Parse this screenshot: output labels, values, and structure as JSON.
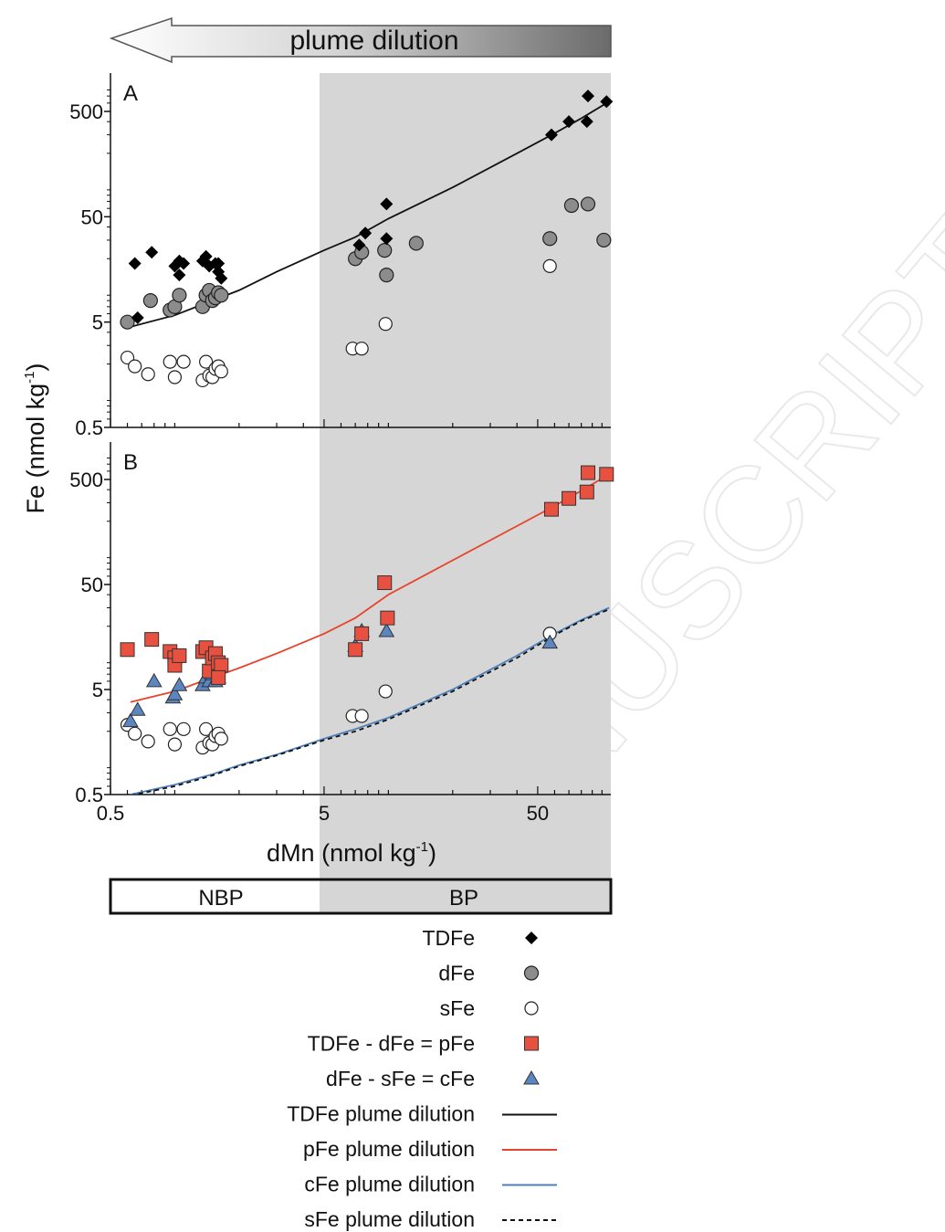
{
  "header": {
    "arrow_label": "plume dilution"
  },
  "watermark": "ANUSCRIPT",
  "panels": {
    "A": {
      "label": "A"
    },
    "B": {
      "label": "B"
    }
  },
  "axes": {
    "ylabel_main": "Fe (nmol kg",
    "ylabel_sup": "-1",
    "ylabel_end": ")",
    "xlabel_main": "dMn (nmol kg",
    "xlabel_sup": "-1",
    "xlabel_end": ")",
    "xlim": [
      0.5,
      110
    ],
    "ylim_A": [
      0.5,
      900
    ],
    "ylim_B": [
      0.5,
      900
    ],
    "x_ticks": [
      {
        "v": 0.5,
        "label": "0.5"
      },
      {
        "v": 5,
        "label": "5"
      },
      {
        "v": 50,
        "label": "50"
      }
    ],
    "y_ticks": [
      {
        "v": 0.5,
        "label": "0.5"
      },
      {
        "v": 5,
        "label": "5"
      },
      {
        "v": 50,
        "label": "50"
      },
      {
        "v": 500,
        "label": "500"
      }
    ],
    "x_scale": "log",
    "y_scale": "log"
  },
  "plume_band": {
    "label_left": "NBP",
    "label_right": "BP",
    "bp_start_dMn": 5.6,
    "fill": "#d6d6d6"
  },
  "colors": {
    "tdfe": "#000000",
    "dfe": "#8c8c8c",
    "sfe": "#ffffff",
    "pfe": "#e8513f",
    "cfe": "#5b86c0",
    "pfe_line": "#e8422a",
    "cfe_line": "#4f7fb8",
    "sfe_line": "#111111"
  },
  "legend": {
    "placement": "bottom",
    "items": [
      {
        "label": "TDFe",
        "marker": "diamond"
      },
      {
        "label": "dFe",
        "marker": "circle-gray"
      },
      {
        "label": "sFe",
        "marker": "circle-white"
      },
      {
        "label": "TDFe - dFe = pFe",
        "marker": "square-red"
      },
      {
        "label": "dFe - sFe = cFe",
        "marker": "triangle-blue"
      },
      {
        "label": "TDFe plume dilution",
        "marker": "line-black"
      },
      {
        "label": "pFe plume dilution",
        "marker": "line-red"
      },
      {
        "label": "cFe plume dilution",
        "marker": "line-blue"
      },
      {
        "label": "sFe plume dilution",
        "marker": "line-dashed"
      }
    ]
  },
  "chart_data": [
    {
      "panel": "A",
      "type": "scatter",
      "series": [
        {
          "name": "TDFe",
          "points": [
            [
              0.65,
              18
            ],
            [
              0.78,
              23
            ],
            [
              0.67,
              5.5
            ],
            [
              1.0,
              17
            ],
            [
              1.05,
              19
            ],
            [
              1.05,
              14
            ],
            [
              1.1,
              18
            ],
            [
              1.35,
              19
            ],
            [
              1.4,
              21
            ],
            [
              1.45,
              17
            ],
            [
              1.55,
              18
            ],
            [
              1.6,
              15
            ],
            [
              1.65,
              13
            ],
            [
              1.6,
              18
            ],
            [
              7.3,
              27
            ],
            [
              7.8,
              35
            ],
            [
              9.8,
              66
            ],
            [
              9.8,
              31
            ],
            [
              58,
              300
            ],
            [
              70,
              400
            ],
            [
              85,
              400
            ],
            [
              86,
              700
            ],
            [
              105,
              620
            ]
          ]
        },
        {
          "name": "dFe",
          "points": [
            [
              0.6,
              5
            ],
            [
              0.77,
              8
            ],
            [
              0.95,
              6.5
            ],
            [
              1.0,
              7
            ],
            [
              1.05,
              9
            ],
            [
              1.35,
              7
            ],
            [
              1.4,
              9
            ],
            [
              1.45,
              10
            ],
            [
              1.5,
              8
            ],
            [
              1.55,
              8.5
            ],
            [
              1.6,
              9.5
            ],
            [
              1.65,
              9
            ],
            [
              7.0,
              20
            ],
            [
              7.5,
              23
            ],
            [
              9.6,
              24
            ],
            [
              9.8,
              14
            ],
            [
              13.5,
              28
            ],
            [
              57,
              31
            ],
            [
              72,
              64
            ],
            [
              86,
              66
            ],
            [
              102,
              30
            ]
          ]
        },
        {
          "name": "sFe",
          "points": [
            [
              0.6,
              2.3
            ],
            [
              0.65,
              1.9
            ],
            [
              0.75,
              1.6
            ],
            [
              0.95,
              2.1
            ],
            [
              1.0,
              1.5
            ],
            [
              1.1,
              2.1
            ],
            [
              1.35,
              1.4
            ],
            [
              1.4,
              2.1
            ],
            [
              1.45,
              1.55
            ],
            [
              1.5,
              1.5
            ],
            [
              1.55,
              1.8
            ],
            [
              1.6,
              1.9
            ],
            [
              1.65,
              1.7
            ],
            [
              6.8,
              2.8
            ],
            [
              7.5,
              2.8
            ],
            [
              9.7,
              4.8
            ],
            [
              57,
              17
            ]
          ]
        }
      ],
      "lines": [
        {
          "name": "TDFe plume dilution",
          "x": [
            0.62,
            1.0,
            1.5,
            2.0,
            3.0,
            5.0,
            7.0,
            10.0,
            20.0,
            40.0,
            60.0,
            80.0,
            108.0
          ],
          "y": [
            4.5,
            5.8,
            8.0,
            10.0,
            15.0,
            24.0,
            32.0,
            48.0,
            95.0,
            200.0,
            310.0,
            430.0,
            620.0
          ]
        }
      ]
    },
    {
      "panel": "B",
      "type": "scatter",
      "series": [
        {
          "name": "TDFe - dFe = pFe",
          "points": [
            [
              0.6,
              12
            ],
            [
              0.78,
              15
            ],
            [
              0.95,
              11.5
            ],
            [
              1.0,
              10
            ],
            [
              1.0,
              8.5
            ],
            [
              1.05,
              10.5
            ],
            [
              1.35,
              11.5
            ],
            [
              1.4,
              12.5
            ],
            [
              1.45,
              7.5
            ],
            [
              1.5,
              10
            ],
            [
              1.55,
              11
            ],
            [
              1.6,
              9
            ],
            [
              1.65,
              8.5
            ],
            [
              1.6,
              6.5
            ],
            [
              7.0,
              12
            ],
            [
              7.5,
              17
            ],
            [
              9.6,
              52
            ],
            [
              9.9,
              24
            ],
            [
              58,
              260
            ],
            [
              70,
              330
            ],
            [
              85,
              380
            ],
            [
              86,
              580
            ],
            [
              105,
              560
            ]
          ]
        },
        {
          "name": "dFe - sFe = cFe",
          "points": [
            [
              0.62,
              2.5
            ],
            [
              0.67,
              3.2
            ],
            [
              0.8,
              6
            ],
            [
              0.98,
              4.2
            ],
            [
              1.0,
              4.5
            ],
            [
              1.05,
              5.5
            ],
            [
              1.35,
              5.5
            ],
            [
              1.4,
              6.5
            ],
            [
              1.45,
              6
            ],
            [
              1.5,
              7
            ],
            [
              1.55,
              6
            ],
            [
              1.6,
              6.5
            ],
            [
              7.0,
              13
            ],
            [
              7.5,
              18
            ],
            [
              9.8,
              18
            ],
            [
              57,
              14
            ]
          ]
        },
        {
          "name": "sFe",
          "points": [
            [
              0.6,
              2.3
            ],
            [
              0.65,
              1.9
            ],
            [
              0.75,
              1.6
            ],
            [
              0.95,
              2.1
            ],
            [
              1.0,
              1.5
            ],
            [
              1.1,
              2.1
            ],
            [
              1.35,
              1.4
            ],
            [
              1.4,
              2.1
            ],
            [
              1.45,
              1.55
            ],
            [
              1.5,
              1.5
            ],
            [
              1.55,
              1.8
            ],
            [
              1.6,
              1.9
            ],
            [
              1.65,
              1.7
            ],
            [
              6.8,
              2.8
            ],
            [
              7.5,
              2.8
            ],
            [
              9.7,
              4.8
            ],
            [
              57,
              17
            ]
          ]
        }
      ],
      "lines": [
        {
          "name": "pFe plume dilution",
          "x": [
            0.62,
            1.0,
            1.5,
            2.0,
            3.0,
            5.0,
            7.0,
            10.0,
            20.0,
            40.0,
            60.0,
            80.0,
            108.0
          ],
          "y": [
            3.8,
            4.8,
            6.5,
            8.0,
            11.0,
            17.0,
            24.0,
            40.0,
            85.0,
            180.0,
            280.0,
            390.0,
            560.0
          ]
        },
        {
          "name": "cFe plume dilution",
          "x": [
            0.62,
            1.0,
            1.5,
            2.0,
            3.0,
            5.0,
            7.0,
            10.0,
            20.0,
            40.0,
            60.0,
            80.0,
            108.0
          ],
          "y": [
            0.5,
            0.62,
            0.78,
            0.95,
            1.2,
            1.7,
            2.1,
            2.7,
            5.0,
            10.5,
            17.0,
            23.0,
            30.0
          ]
        },
        {
          "name": "sFe plume dilution",
          "x": [
            0.62,
            1.0,
            1.5,
            2.0,
            3.0,
            5.0,
            7.0,
            10.0,
            20.0,
            40.0,
            60.0,
            80.0,
            108.0
          ],
          "y": [
            0.49,
            0.6,
            0.76,
            0.93,
            1.18,
            1.65,
            2.0,
            2.6,
            4.8,
            10.0,
            16.5,
            22.5,
            29.0
          ]
        }
      ]
    }
  ]
}
